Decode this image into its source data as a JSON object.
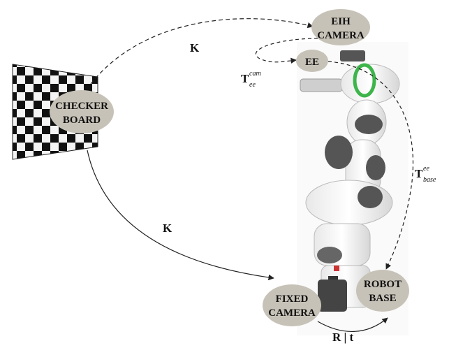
{
  "diagram": {
    "nodes": {
      "checkerboard": {
        "line1": "CHECKER",
        "line2": "BOARD"
      },
      "eih_camera": {
        "line1": "EIH",
        "line2": "CAMERA"
      },
      "ee": {
        "label": "EE"
      },
      "fixed_camera": {
        "line1": "FIXED",
        "line2": "CAMERA"
      },
      "robot_base": {
        "line1": "ROBOT",
        "line2": "BASE"
      }
    },
    "edges": {
      "k_top": "K",
      "k_bottom": "K",
      "t_ee_cam": {
        "base": "T",
        "sup": "cam",
        "sub": "ee"
      },
      "t_base_ee": {
        "base": "T",
        "sup": "ee",
        "sub": "base"
      },
      "r_t": "R | t"
    }
  }
}
